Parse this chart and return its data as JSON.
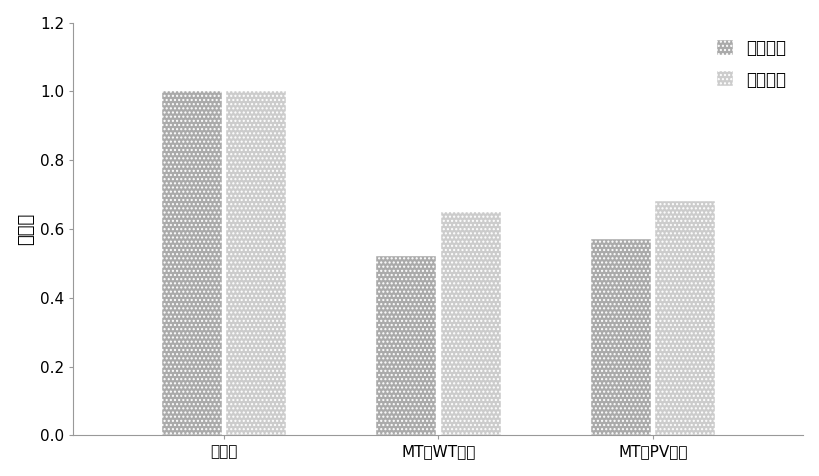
{
  "categories": [
    "优化前",
    "MT、WT优化",
    "MT、PV优化"
  ],
  "series": [
    {
      "name": "运行成本",
      "values": [
        1.0,
        0.52,
        0.57
      ],
      "color": "#aaaaaa",
      "hatch": "...."
    },
    {
      "name": "运行风险",
      "values": [
        1.0,
        0.65,
        0.68
      ],
      "color": "#cccccc",
      "hatch": "...."
    }
  ],
  "ylabel": "指标値",
  "ylim": [
    0,
    1.2
  ],
  "yticks": [
    0,
    0.2,
    0.4,
    0.6,
    0.8,
    1.0,
    1.2
  ],
  "bar_width": 0.28,
  "background_color": "#ffffff",
  "legend_fontsize": 12,
  "ylabel_fontsize": 13,
  "tick_fontsize": 11,
  "spine_color": "#999999"
}
